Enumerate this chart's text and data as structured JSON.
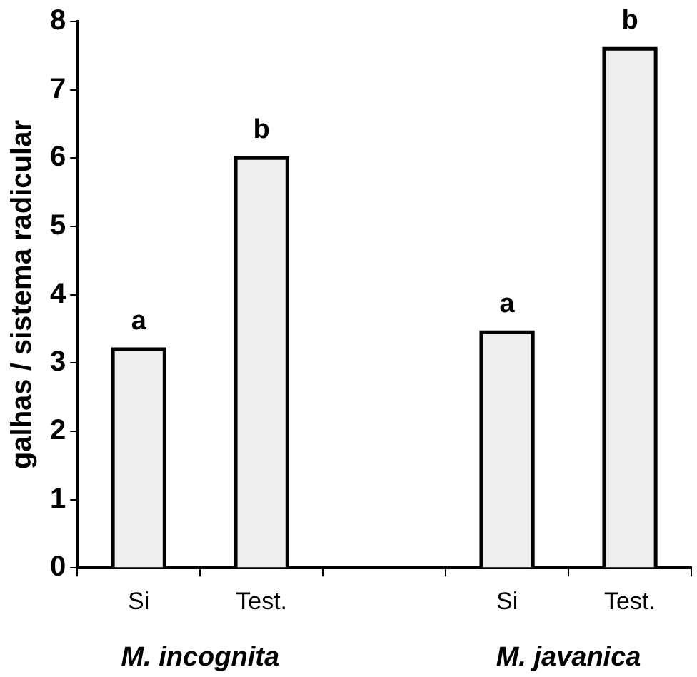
{
  "chart_data": {
    "type": "bar",
    "ylabel": "galhas / sistema radicular",
    "categories": [
      "Si",
      "Test.",
      null,
      "Si",
      "Test."
    ],
    "values": [
      3.2,
      6.0,
      null,
      3.45,
      7.6
    ],
    "value_labels": [
      "a",
      "b",
      null,
      "a",
      "b"
    ],
    "color": "#eeeeee",
    "ylim": [
      0,
      8
    ],
    "yticks": [
      0,
      1,
      2,
      3,
      4,
      5,
      6,
      7,
      8
    ],
    "annotations": [
      "M. incognita",
      "M. javanica"
    ],
    "grid": false,
    "legend": false
  }
}
